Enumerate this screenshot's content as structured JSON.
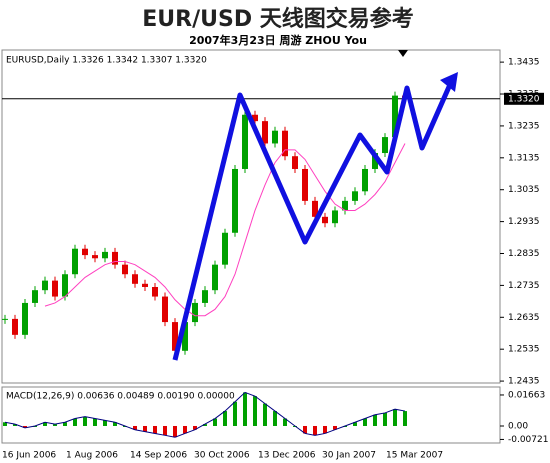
{
  "chart_data": {
    "type": "candlestick",
    "title": "EUR/USD 天线图交易参考",
    "subtitle": "2007年3月23日    周游 ZHOU You",
    "price_header": "EURUSD,Daily 1.3326 1.3342 1.3307 1.3320",
    "macd_header": "MACD(12,26,9) 0.00636 0.00489 0.00190 0.00000",
    "x_labels": [
      "16 Jun 2006",
      "1 Aug 2006",
      "14 Sep 2006",
      "30 Oct 2006",
      "13 Dec 2006",
      "30 Jan 2007",
      "15 Mar 2007"
    ],
    "series": [
      {
        "name": "close",
        "up_color": "#00a000",
        "down_color": "#e00000",
        "values": [
          1.263,
          1.258,
          1.268,
          1.272,
          1.275,
          1.27,
          1.277,
          1.285,
          1.283,
          1.282,
          1.284,
          1.28,
          1.277,
          1.274,
          1.273,
          1.27,
          1.262,
          1.253,
          1.262,
          1.268,
          1.272,
          1.28,
          1.29,
          1.31,
          1.327,
          1.325,
          1.318,
          1.322,
          1.314,
          1.31,
          1.3,
          1.295,
          1.293,
          1.297,
          1.3,
          1.303,
          1.31,
          1.315,
          1.32,
          1.333,
          1.332
        ]
      },
      {
        "name": "ma",
        "color": "#ff40c0",
        "values": [
          null,
          null,
          null,
          null,
          1.267,
          1.268,
          1.27,
          1.273,
          1.276,
          1.278,
          1.28,
          1.281,
          1.281,
          1.28,
          1.278,
          1.276,
          1.273,
          1.269,
          1.266,
          1.264,
          1.264,
          1.266,
          1.27,
          1.277,
          1.287,
          1.297,
          1.305,
          1.312,
          1.316,
          1.316,
          1.313,
          1.308,
          1.303,
          1.299,
          1.297,
          1.297,
          1.299,
          1.302,
          1.306,
          1.312,
          1.318
        ]
      },
      {
        "name": "macd",
        "color": "#000080",
        "axis": "y2",
        "values": [
          0.002,
          0.001,
          -0.001,
          0,
          0.002,
          0.001,
          0.002,
          0.004,
          0.005,
          0.004,
          0.003,
          0.002,
          0,
          -0.002,
          -0.003,
          -0.004,
          -0.005,
          -0.006,
          -0.004,
          -0.002,
          0.001,
          0.004,
          0.008,
          0.013,
          0.018,
          0.016,
          0.012,
          0.008,
          0.004,
          0,
          -0.004,
          -0.005,
          -0.004,
          -0.002,
          0,
          0.002,
          0.004,
          0.006,
          0.007,
          0.009,
          0.008
        ]
      }
    ],
    "hline": {
      "value": 1.332,
      "label": "1.3320"
    },
    "ylim": [
      1.2429,
      1.3473
    ],
    "yticks": [
      1.2435,
      1.2535,
      1.2635,
      1.2735,
      1.2835,
      1.2935,
      1.3035,
      1.3135,
      1.3235,
      1.3335,
      1.3435
    ],
    "y2lim": [
      -0.00912,
      0.0209
    ],
    "y2ticks": [
      0.01663,
      {
        "value": 0,
        "label": "0.00"
      },
      -0.00721
    ]
  }
}
